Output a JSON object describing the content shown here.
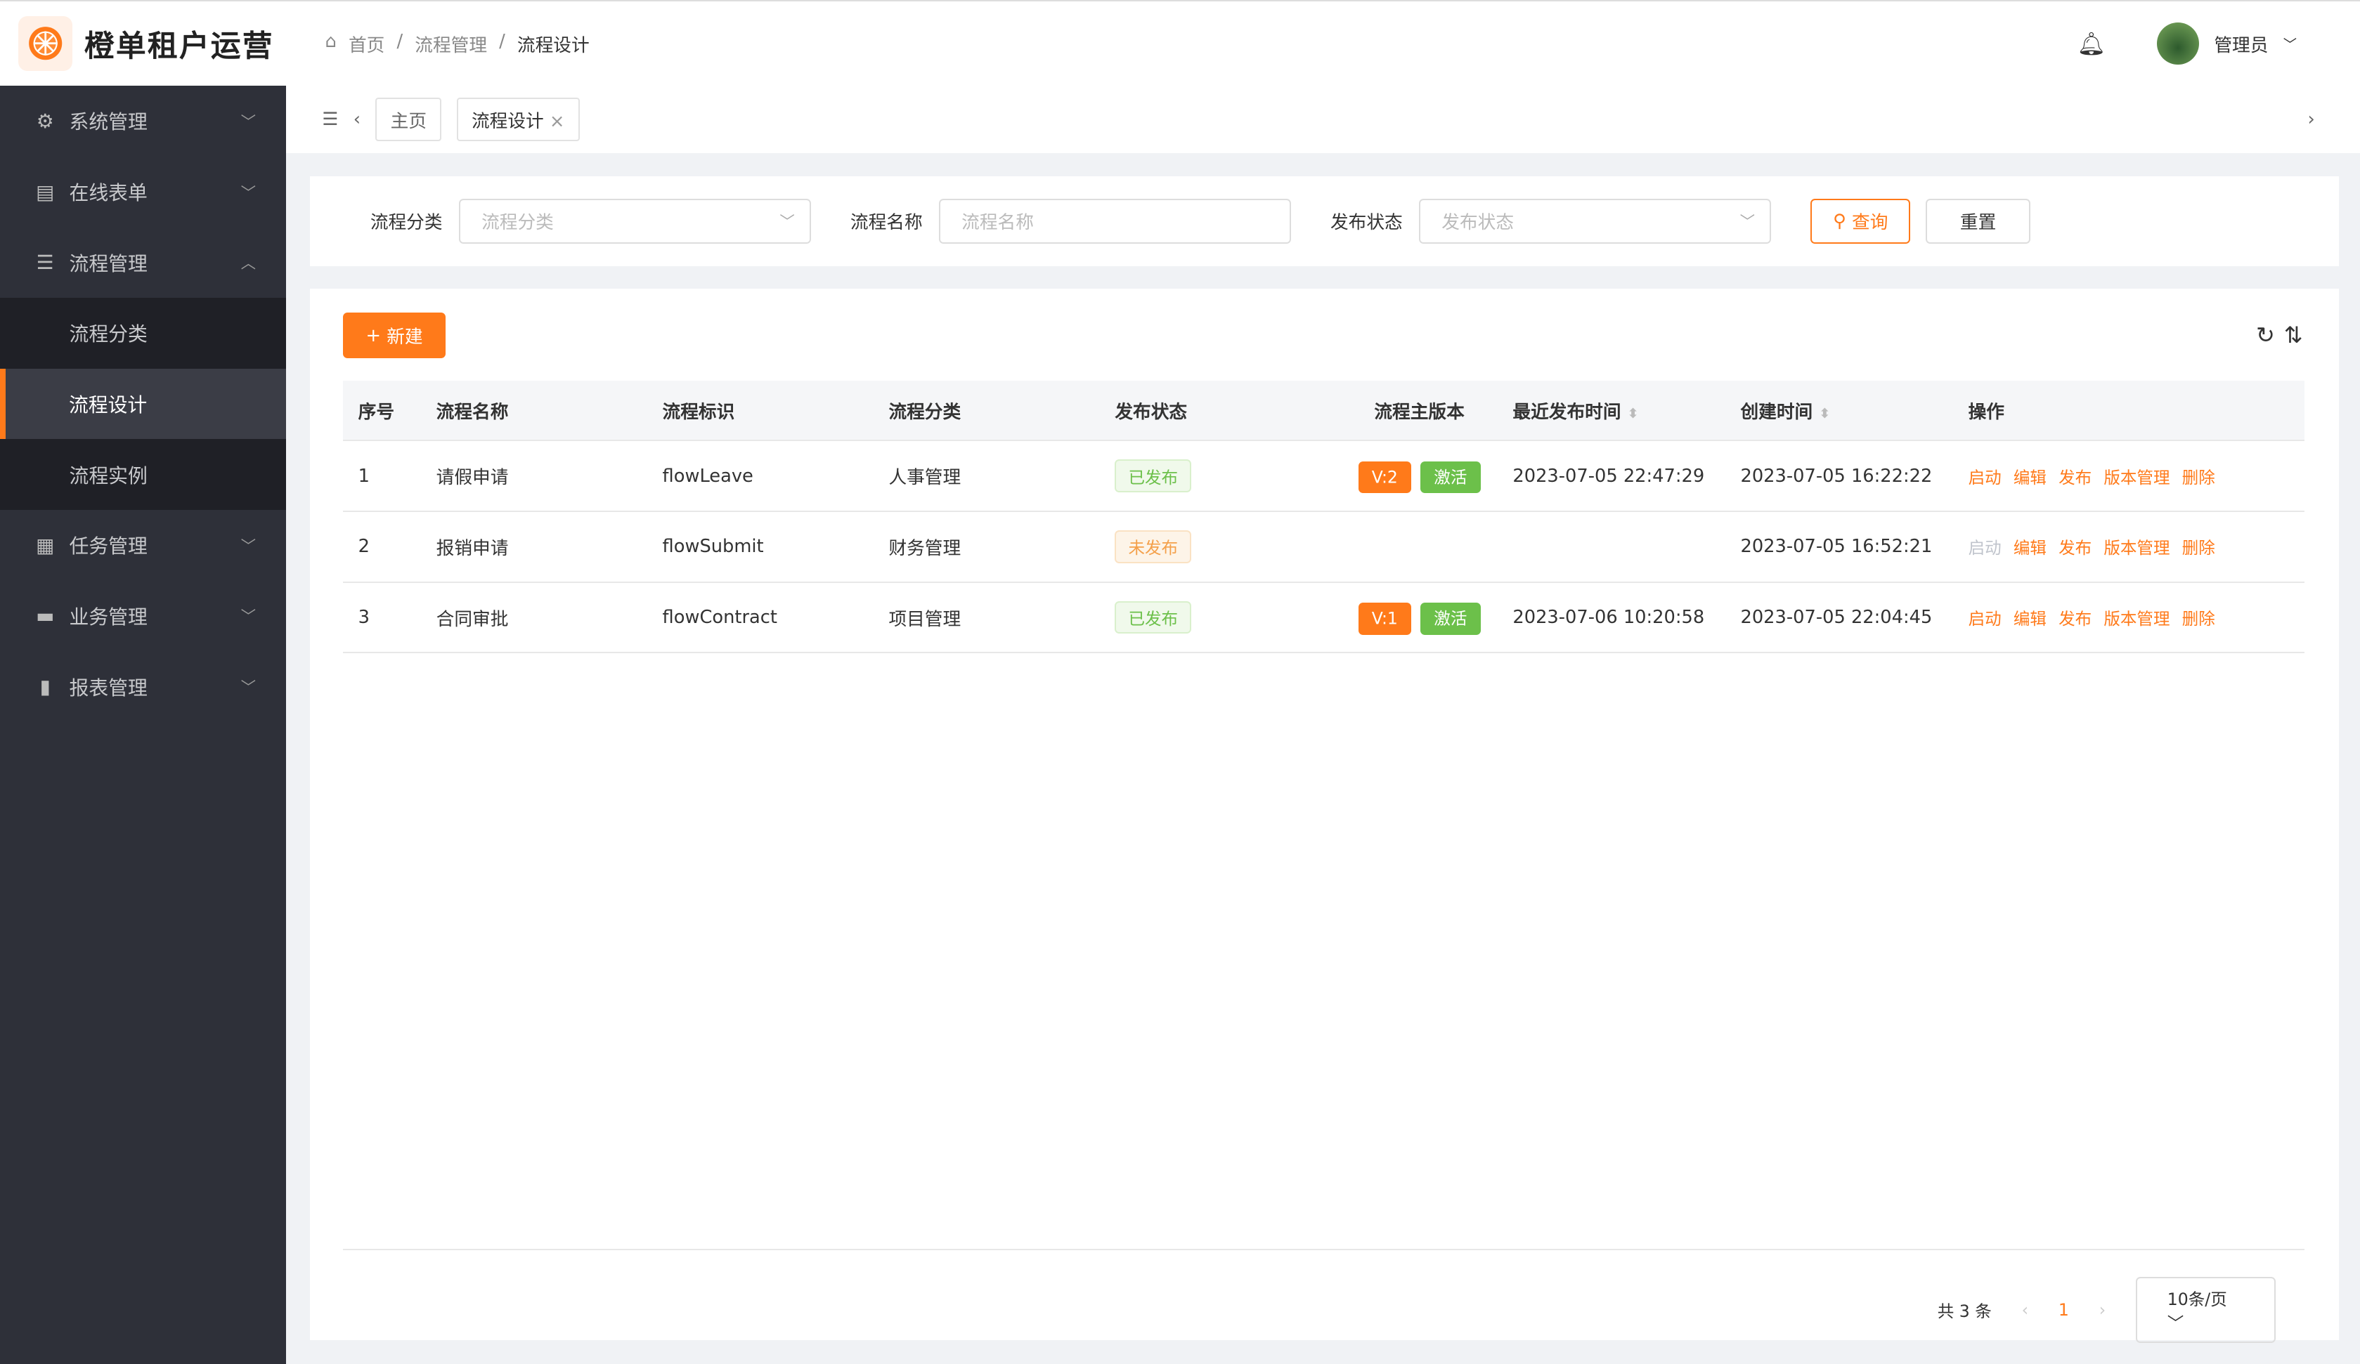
{
  "app": {
    "title": "橙单租户运营",
    "accent": "#ff7a1a"
  },
  "breadcrumb": [
    "首页",
    "流程管理",
    "流程设计"
  ],
  "user": {
    "name": "管理员"
  },
  "sidebar": {
    "items": [
      {
        "label": "系统管理",
        "icon": "gear-icon"
      },
      {
        "label": "在线表单",
        "icon": "clipboard-icon"
      },
      {
        "label": "流程管理",
        "icon": "sliders-icon",
        "children": [
          {
            "label": "流程分类"
          },
          {
            "label": "流程设计",
            "active": true
          },
          {
            "label": "流程实例"
          }
        ]
      },
      {
        "label": "任务管理",
        "icon": "grid-icon"
      },
      {
        "label": "业务管理",
        "icon": "briefcase-icon"
      },
      {
        "label": "报表管理",
        "icon": "bar-chart-icon"
      }
    ]
  },
  "tabs": [
    {
      "label": "主页"
    },
    {
      "label": "流程设计"
    }
  ],
  "filter": {
    "category_label": "流程分类",
    "category_placeholder": "流程分类",
    "name_label": "流程名称",
    "name_placeholder": "流程名称",
    "status_label": "发布状态",
    "status_placeholder": "发布状态",
    "query": "查询",
    "reset": "重置"
  },
  "toolbar": {
    "new": "新建"
  },
  "table": {
    "headers": [
      "序号",
      "流程名称",
      "流程标识",
      "流程分类",
      "发布状态",
      "流程主版本",
      "最近发布时间",
      "创建时间",
      "操作"
    ],
    "rows": [
      {
        "no": "1",
        "name": "请假申请",
        "key": "flowLeave",
        "category": "人事管理",
        "status": "已发布",
        "version": "V:2",
        "active": "激活",
        "published": "2023-07-05 22:47:29",
        "created": "2023-07-05 16:22:22"
      },
      {
        "no": "2",
        "name": "报销申请",
        "key": "flowSubmit",
        "category": "财务管理",
        "status": "未发布",
        "version": "",
        "active": "",
        "published": "",
        "created": "2023-07-05 16:52:21"
      },
      {
        "no": "3",
        "name": "合同审批",
        "key": "flowContract",
        "category": "项目管理",
        "status": "已发布",
        "version": "V:1",
        "active": "激活",
        "published": "2023-07-06 10:20:58",
        "created": "2023-07-05 22:04:45"
      }
    ],
    "actions": [
      "启动",
      "编辑",
      "发布",
      "版本管理",
      "删除"
    ]
  },
  "pagination": {
    "total": "共 3 条",
    "page": "1",
    "page_size": "10条/页"
  }
}
